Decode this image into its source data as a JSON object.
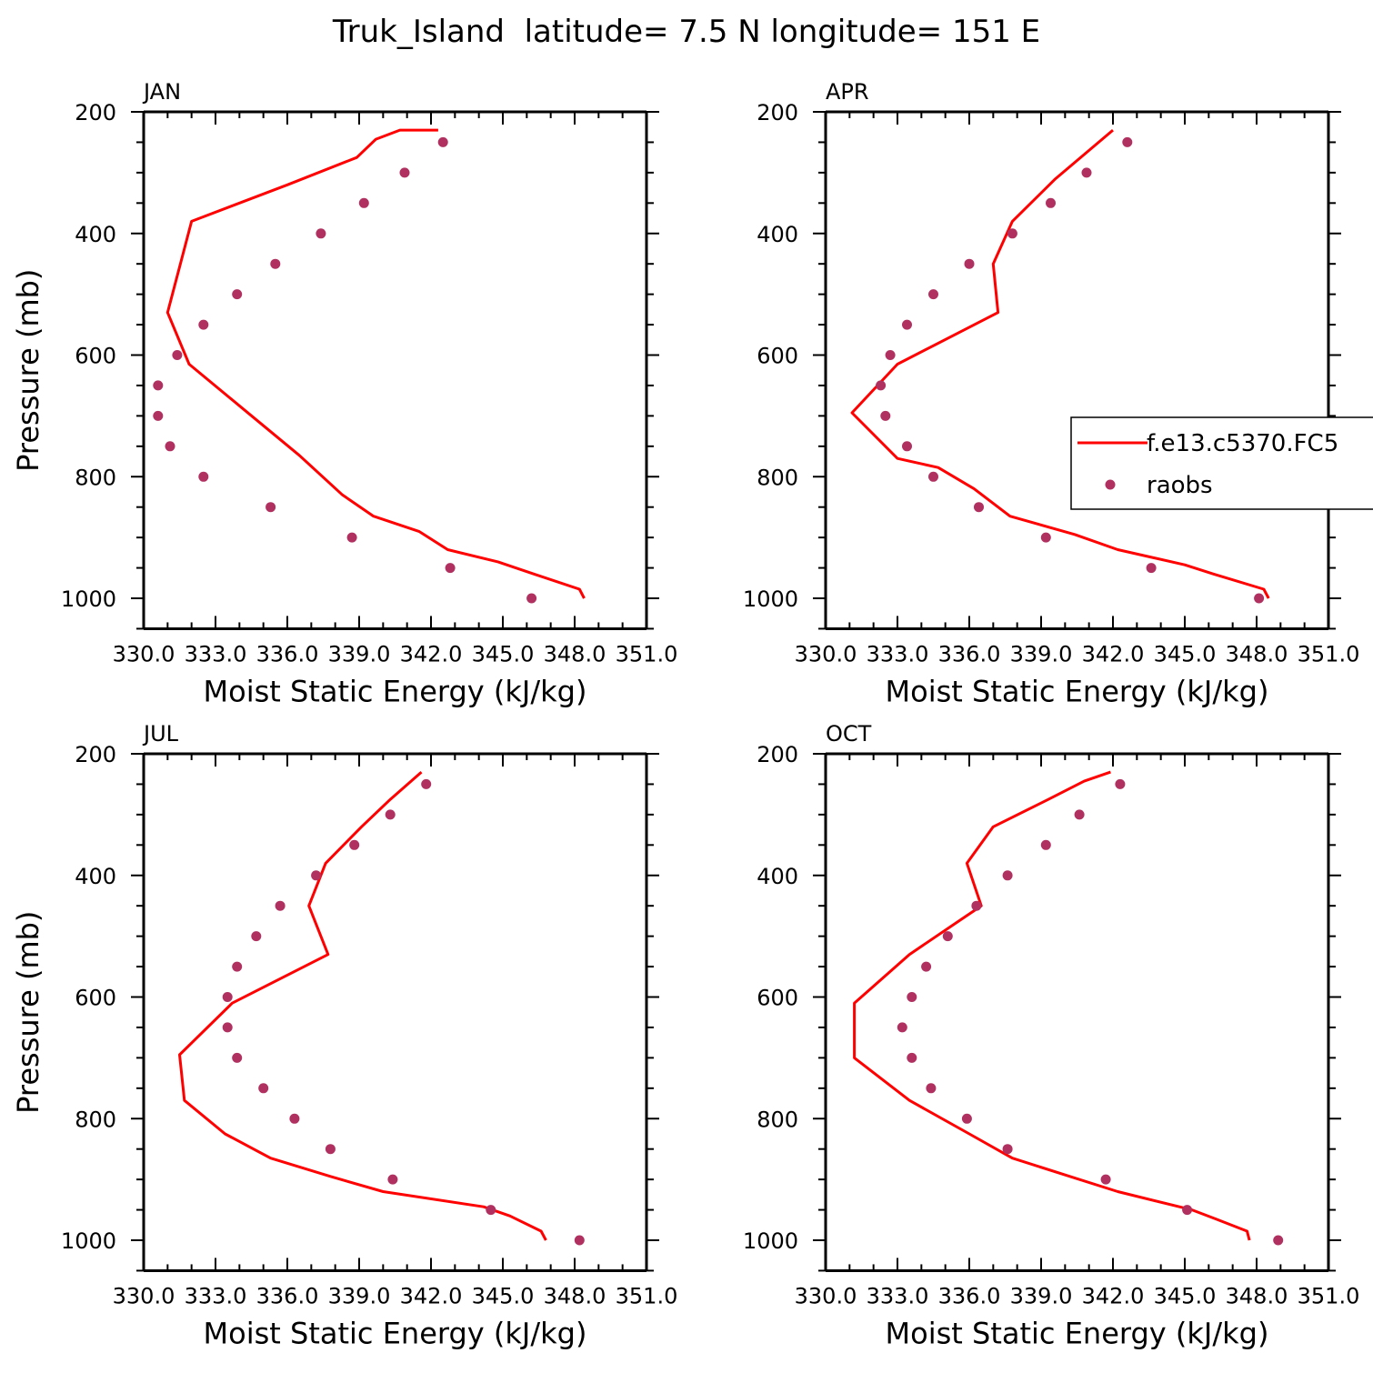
{
  "title": "Truk_Island  latitude= 7.5 N longitude= 151 E",
  "legend": {
    "model_label": "f.e13.c5370.FC5",
    "obs_label": "raobs"
  },
  "colors": {
    "model_line": "#ff0000",
    "obs_marker": "#b03060"
  },
  "chart_data": [
    {
      "type": "line",
      "panel_label": "JAN",
      "xlabel": "Moist Static Energy (kJ/kg)",
      "ylabel": "Pressure (mb)",
      "x_tick_labels": [
        "330.0",
        "333.0",
        "336.0",
        "339.0",
        "342.0",
        "345.0",
        "348.0",
        "351.0"
      ],
      "y_tick_labels": [
        "200",
        "400",
        "600",
        "800",
        "1000"
      ],
      "xlim": [
        330,
        351
      ],
      "ylim": [
        1000,
        200
      ],
      "series": [
        {
          "name": "f.e13.c5370.FC5",
          "kind": "line",
          "x": [
            348.4,
            348.2,
            346.3,
            344.8,
            342.7,
            341.5,
            339.6,
            338.3,
            336.5,
            334.2,
            331.9,
            331.0,
            332.0,
            336.0,
            338.9,
            339.7,
            340.7,
            342.3
          ],
          "y": [
            1000,
            985,
            960,
            940,
            920,
            890,
            865,
            830,
            765,
            690,
            615,
            530,
            380,
            320,
            275,
            245,
            230,
            230
          ]
        },
        {
          "name": "raobs",
          "kind": "scatter",
          "x": [
            346.2,
            342.8,
            338.7,
            335.3,
            332.5,
            331.1,
            330.6,
            330.6,
            331.4,
            332.5,
            333.9,
            335.5,
            337.4,
            339.2,
            340.9,
            342.5
          ],
          "y": [
            1000,
            950,
            900,
            850,
            800,
            750,
            700,
            650,
            600,
            550,
            500,
            450,
            400,
            350,
            300,
            250
          ]
        }
      ]
    },
    {
      "type": "line",
      "panel_label": "APR",
      "xlabel": "Moist Static Energy (kJ/kg)",
      "ylabel": "",
      "x_tick_labels": [
        "330.0",
        "333.0",
        "336.0",
        "339.0",
        "342.0",
        "345.0",
        "348.0",
        "351.0"
      ],
      "y_tick_labels": [
        "200",
        "400",
        "600",
        "800",
        "1000"
      ],
      "xlim": [
        330,
        351
      ],
      "ylim": [
        1000,
        200
      ],
      "series": [
        {
          "name": "f.e13.c5370.FC5",
          "kind": "line",
          "x": [
            348.5,
            348.3,
            346.2,
            345.0,
            342.2,
            340.4,
            337.7,
            336.2,
            334.7,
            333.0,
            331.1,
            333.0,
            337.2,
            337.0,
            337.8,
            339.6,
            342.0
          ],
          "y": [
            1000,
            985,
            960,
            945,
            920,
            895,
            865,
            820,
            785,
            770,
            695,
            615,
            530,
            450,
            380,
            310,
            230
          ]
        },
        {
          "name": "raobs",
          "kind": "scatter",
          "x": [
            348.1,
            343.6,
            339.2,
            336.4,
            334.5,
            333.4,
            332.5,
            332.3,
            332.7,
            333.4,
            334.5,
            336.0,
            337.8,
            339.4,
            340.9,
            342.6
          ],
          "y": [
            1000,
            950,
            900,
            850,
            800,
            750,
            700,
            650,
            600,
            550,
            500,
            450,
            400,
            350,
            300,
            250
          ]
        }
      ]
    },
    {
      "type": "line",
      "panel_label": "JUL",
      "xlabel": "Moist Static Energy (kJ/kg)",
      "ylabel": "Pressure (mb)",
      "x_tick_labels": [
        "330.0",
        "333.0",
        "336.0",
        "339.0",
        "342.0",
        "345.0",
        "348.0",
        "351.0"
      ],
      "y_tick_labels": [
        "200",
        "400",
        "600",
        "800",
        "1000"
      ],
      "xlim": [
        330,
        351
      ],
      "ylim": [
        1000,
        200
      ],
      "series": [
        {
          "name": "f.e13.c5370.FC5",
          "kind": "line",
          "x": [
            346.8,
            346.6,
            345.3,
            344.2,
            340.0,
            337.8,
            335.3,
            333.4,
            331.7,
            331.5,
            333.7,
            337.7,
            336.9,
            337.6,
            339.1,
            340.3,
            341.6
          ],
          "y": [
            1000,
            985,
            960,
            945,
            920,
            895,
            865,
            825,
            770,
            695,
            610,
            530,
            450,
            380,
            320,
            275,
            230
          ]
        },
        {
          "name": "raobs",
          "kind": "scatter",
          "x": [
            348.2,
            344.5,
            340.4,
            337.8,
            336.3,
            335.0,
            333.9,
            333.5,
            333.5,
            333.9,
            334.7,
            335.7,
            337.2,
            338.8,
            340.3,
            341.8
          ],
          "y": [
            1000,
            950,
            900,
            850,
            800,
            750,
            700,
            650,
            600,
            550,
            500,
            450,
            400,
            350,
            300,
            250
          ]
        }
      ]
    },
    {
      "type": "line",
      "panel_label": "OCT",
      "xlabel": "Moist Static Energy (kJ/kg)",
      "ylabel": "",
      "x_tick_labels": [
        "330.0",
        "333.0",
        "336.0",
        "339.0",
        "342.0",
        "345.0",
        "348.0",
        "351.0"
      ],
      "y_tick_labels": [
        "200",
        "400",
        "600",
        "800",
        "1000"
      ],
      "xlim": [
        330,
        351
      ],
      "ylim": [
        1000,
        200
      ],
      "series": [
        {
          "name": "f.e13.c5370.FC5",
          "kind": "line",
          "x": [
            347.7,
            347.6,
            346.3,
            345.3,
            342.2,
            340.2,
            337.8,
            336.0,
            333.5,
            331.2,
            331.2,
            333.5,
            336.5,
            335.9,
            337.0,
            339.3,
            340.8,
            341.9
          ],
          "y": [
            1000,
            985,
            965,
            950,
            920,
            895,
            865,
            825,
            770,
            700,
            610,
            530,
            450,
            380,
            320,
            275,
            245,
            230
          ]
        },
        {
          "name": "raobs",
          "kind": "scatter",
          "x": [
            348.9,
            345.1,
            341.7,
            337.6,
            335.9,
            334.4,
            333.6,
            333.2,
            333.6,
            334.2,
            335.1,
            336.3,
            337.6,
            339.2,
            340.6,
            342.3
          ],
          "y": [
            1000,
            950,
            900,
            850,
            800,
            750,
            700,
            650,
            600,
            550,
            500,
            450,
            400,
            350,
            300,
            250
          ]
        }
      ]
    }
  ]
}
